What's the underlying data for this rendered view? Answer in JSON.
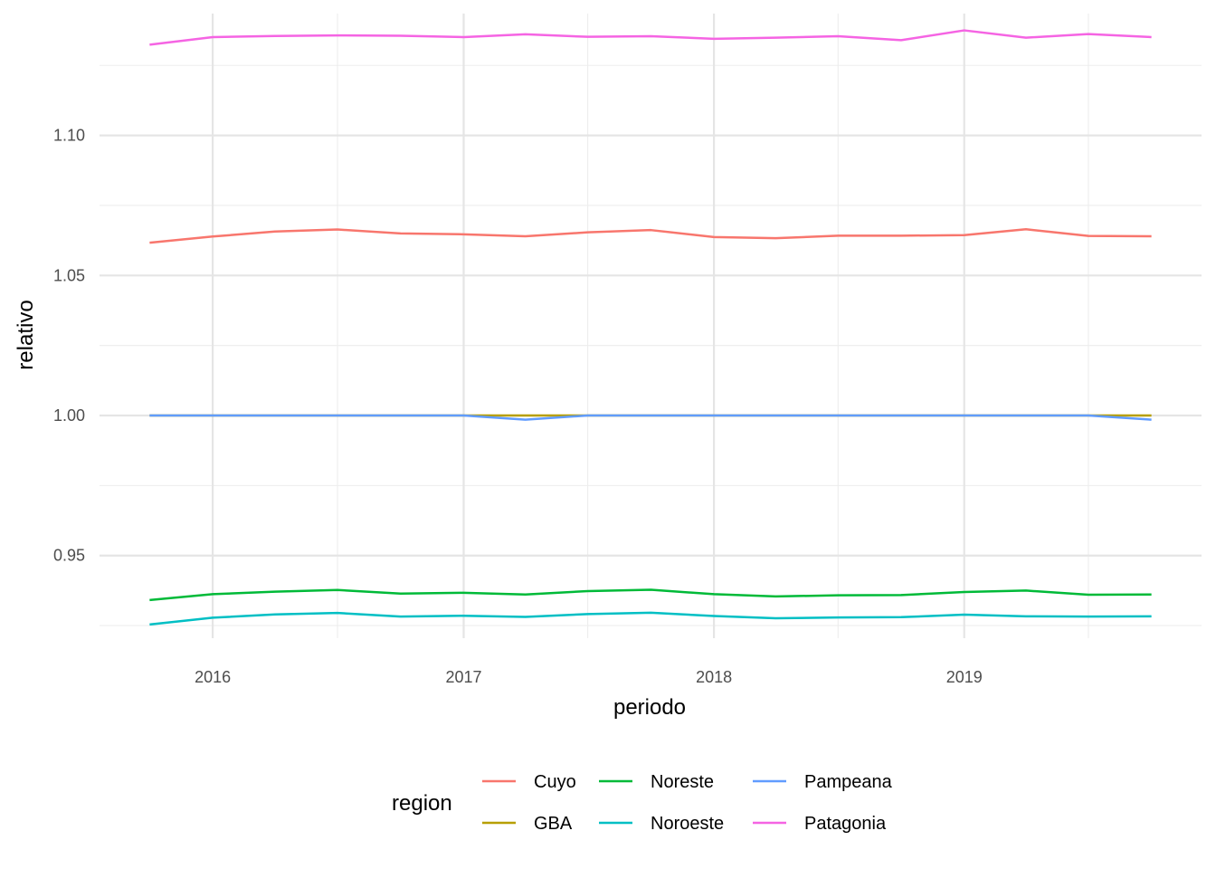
{
  "chart_data": {
    "type": "line",
    "title": "",
    "xlabel": "periodo",
    "ylabel": "relativo",
    "x": [
      "2015-10-01",
      "2016-01-01",
      "2016-04-01",
      "2016-07-01",
      "2016-10-01",
      "2017-01-01",
      "2017-04-01",
      "2017-07-01",
      "2017-10-01",
      "2018-01-01",
      "2018-04-01",
      "2018-07-01",
      "2018-10-01",
      "2019-01-01",
      "2019-04-01",
      "2019-07-01",
      "2019-10-01"
    ],
    "x_ticks": [
      "2016",
      "2017",
      "2018",
      "2019"
    ],
    "y_ticks": [
      "0.95",
      "1.00",
      "1.05",
      "1.10"
    ],
    "ylim": [
      0.9205,
      1.1435
    ],
    "grid": true,
    "legend": {
      "title": "region",
      "position": "bottom",
      "items": [
        "Cuyo",
        "GBA",
        "Noreste",
        "Noroeste",
        "Pampeana",
        "Patagonia"
      ]
    },
    "series": [
      {
        "name": "Cuyo",
        "color": "#F8766D",
        "values": [
          1.0617,
          1.0639,
          1.0657,
          1.0664,
          1.065,
          1.0647,
          1.064,
          1.0654,
          1.0662,
          1.0637,
          1.0633,
          1.0642,
          1.0642,
          1.0644,
          1.0665,
          1.0641,
          1.064
        ]
      },
      {
        "name": "GBA",
        "color": "#B79F00",
        "values": [
          1.0,
          1.0,
          1.0,
          1.0,
          1.0,
          1.0,
          1.0,
          1.0,
          1.0,
          1.0,
          1.0,
          1.0,
          1.0,
          1.0,
          1.0,
          1.0,
          1.0
        ]
      },
      {
        "name": "Noreste",
        "color": "#00BA38",
        "values": [
          0.9341,
          0.9362,
          0.9371,
          0.9377,
          0.9364,
          0.9367,
          0.9361,
          0.9373,
          0.9378,
          0.9362,
          0.9354,
          0.9358,
          0.9359,
          0.937,
          0.9375,
          0.936,
          0.9361
        ]
      },
      {
        "name": "Noroeste",
        "color": "#00BFC4",
        "values": [
          0.9254,
          0.9278,
          0.929,
          0.9295,
          0.9282,
          0.9285,
          0.9281,
          0.9291,
          0.9296,
          0.9284,
          0.9276,
          0.9279,
          0.928,
          0.9289,
          0.9283,
          0.9282,
          0.9283
        ]
      },
      {
        "name": "Pampeana",
        "color": "#619CFF",
        "values": [
          1.0,
          1.0,
          1.0,
          1.0,
          1.0,
          1.0,
          0.9985,
          1.0,
          1.0,
          1.0,
          1.0,
          1.0,
          1.0,
          1.0,
          1.0,
          1.0,
          0.9985
        ]
      },
      {
        "name": "Patagonia",
        "color": "#F564E3",
        "values": [
          1.1324,
          1.1351,
          1.1355,
          1.1357,
          1.1356,
          1.1351,
          1.1361,
          1.1352,
          1.1354,
          1.1345,
          1.1349,
          1.1354,
          1.134,
          1.1375,
          1.1349,
          1.1362,
          1.1351
        ]
      }
    ]
  }
}
